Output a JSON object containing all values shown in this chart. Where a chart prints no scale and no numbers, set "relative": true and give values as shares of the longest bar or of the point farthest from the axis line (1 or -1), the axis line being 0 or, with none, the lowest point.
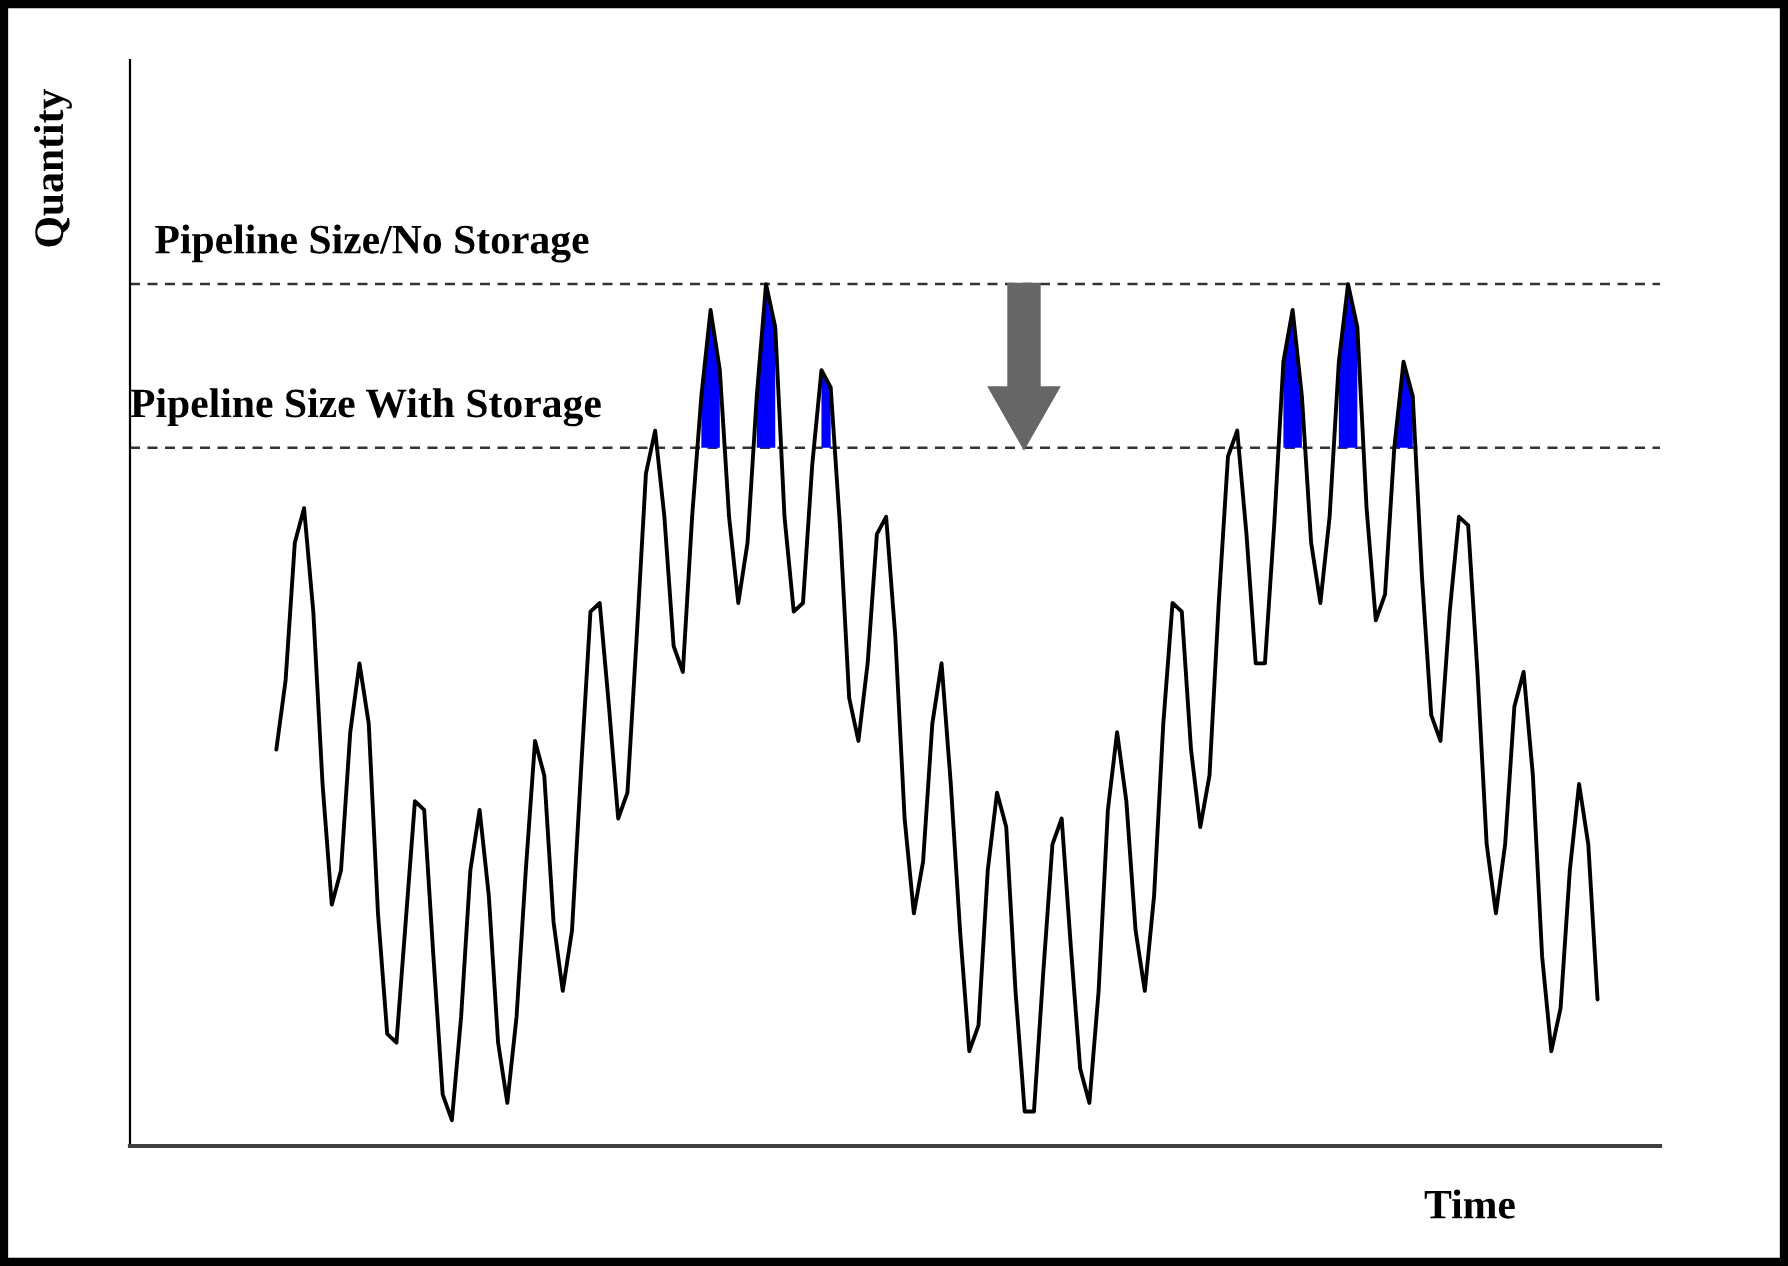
{
  "chart_data": {
    "type": "line",
    "relative": true,
    "xlabel": "Time",
    "ylabel": "Quantity",
    "grid": false,
    "marker": "none",
    "line_style": "solid",
    "categories": [
      null,
      null,
      null,
      null,
      null,
      null,
      null,
      null,
      null,
      null,
      null,
      null,
      null,
      null,
      null,
      null,
      null,
      null,
      null,
      null,
      null,
      null,
      null,
      null,
      null,
      null,
      null,
      null,
      null,
      null,
      null,
      null,
      null,
      null,
      null,
      null,
      null,
      null,
      null,
      null,
      null,
      null,
      null,
      null,
      null,
      null,
      null,
      null,
      null,
      null,
      null,
      null,
      null,
      null,
      null,
      null,
      null,
      null,
      null,
      null,
      null,
      null,
      null,
      null,
      null,
      null,
      null,
      null,
      null,
      null,
      null,
      null,
      null,
      null,
      null,
      null,
      null,
      null,
      null,
      null,
      null,
      null,
      null,
      null,
      null,
      null,
      null,
      null,
      null,
      null,
      null,
      null,
      null,
      null,
      null,
      null,
      null,
      null,
      null,
      null,
      null,
      null,
      null,
      null,
      null,
      null,
      null,
      null,
      null,
      null,
      null,
      null,
      null,
      null,
      null,
      null,
      null,
      null,
      null,
      null,
      null,
      null,
      null,
      null,
      null,
      null,
      null,
      null,
      null,
      null,
      null,
      null,
      null,
      null,
      null,
      null,
      null,
      null,
      null,
      null,
      null,
      null,
      null,
      null
    ],
    "series": [
      {
        "color": "#000000",
        "values": [
          0.46,
          0.54,
          0.7,
          0.74,
          0.62,
          0.42,
          0.28,
          0.32,
          0.48,
          0.56,
          0.49,
          0.27,
          0.13,
          0.12,
          0.26,
          0.4,
          0.39,
          0.22,
          0.06,
          0.03,
          0.15,
          0.32,
          0.39,
          0.29,
          0.12,
          0.05,
          0.15,
          0.32,
          0.47,
          0.43,
          0.26,
          0.18,
          0.25,
          0.44,
          0.62,
          0.63,
          0.51,
          0.38,
          0.41,
          0.59,
          0.78,
          0.83,
          0.73,
          0.58,
          0.55,
          0.73,
          0.87,
          0.97,
          0.9,
          0.73,
          0.63,
          0.7,
          0.87,
          1.0,
          0.95,
          0.73,
          0.62,
          0.63,
          0.79,
          0.9,
          0.88,
          0.72,
          0.52,
          0.47,
          0.56,
          0.71,
          0.73,
          0.59,
          0.38,
          0.27,
          0.33,
          0.49,
          0.56,
          0.42,
          0.25,
          0.11,
          0.14,
          0.32,
          0.41,
          0.37,
          0.18,
          0.04,
          0.04,
          0.2,
          0.35,
          0.38,
          0.23,
          0.09,
          0.05,
          0.18,
          0.39,
          0.48,
          0.4,
          0.25,
          0.18,
          0.29,
          0.49,
          0.63,
          0.62,
          0.46,
          0.37,
          0.43,
          0.63,
          0.8,
          0.83,
          0.71,
          0.56,
          0.56,
          0.72,
          0.91,
          0.97,
          0.87,
          0.7,
          0.63,
          0.73,
          0.91,
          1.0,
          0.95,
          0.74,
          0.61,
          0.64,
          0.81,
          0.91,
          0.87,
          0.66,
          0.5,
          0.47,
          0.62,
          0.73,
          0.72,
          0.55,
          0.35,
          0.27,
          0.35,
          0.51,
          0.55,
          0.43,
          0.22,
          0.11,
          0.16,
          0.32,
          0.42,
          0.35,
          0.17
        ]
      },
      {
        "type": "area",
        "color": "#0000ff",
        "values": [
          null,
          null,
          null,
          null,
          null,
          null,
          null,
          null,
          null,
          null,
          null,
          null,
          null,
          null,
          null,
          null,
          null,
          null,
          null,
          null,
          null,
          null,
          null,
          null,
          null,
          null,
          null,
          null,
          null,
          null,
          null,
          null,
          null,
          null,
          null,
          null,
          null,
          null,
          null,
          null,
          null,
          null,
          null,
          null,
          null,
          null,
          0.87,
          0.97,
          0.9,
          null,
          null,
          null,
          0.87,
          1.0,
          0.95,
          null,
          null,
          null,
          null,
          0.9,
          0.88,
          null,
          null,
          null,
          null,
          null,
          null,
          null,
          null,
          null,
          null,
          null,
          null,
          null,
          null,
          null,
          null,
          null,
          null,
          null,
          null,
          null,
          null,
          null,
          null,
          null,
          null,
          null,
          null,
          null,
          null,
          null,
          null,
          null,
          null,
          null,
          null,
          null,
          null,
          null,
          null,
          null,
          null,
          null,
          null,
          null,
          null,
          null,
          null,
          0.91,
          0.97,
          0.87,
          null,
          null,
          null,
          0.91,
          1.0,
          0.95,
          null,
          null,
          null,
          0.81,
          0.91,
          0.87,
          null,
          null,
          null,
          null,
          null,
          null,
          null,
          null,
          null,
          null,
          null,
          null,
          null,
          null,
          null,
          null,
          null,
          null,
          null,
          null
        ]
      }
    ],
    "ref_lines": [
      {
        "axis": "y",
        "value": 1.0,
        "label": "Pipeline Size/No Storage",
        "line_style": "dashed"
      },
      {
        "axis": "y",
        "value": 0.81,
        "label": "Pipeline Size With Storage",
        "line_style": "dashed"
      }
    ]
  }
}
